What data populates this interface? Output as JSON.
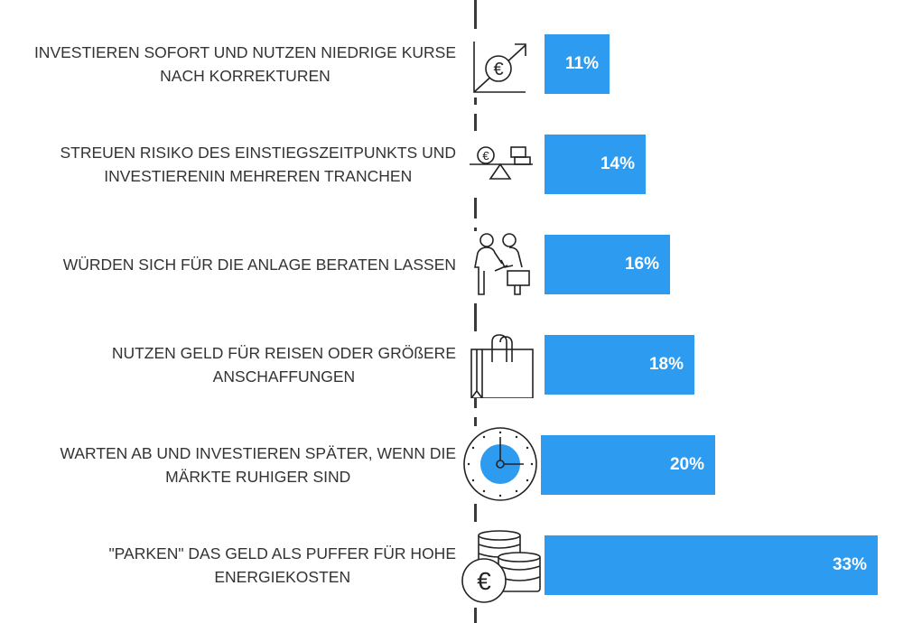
{
  "chart_data": {
    "type": "bar",
    "orientation": "horizontal",
    "title": "",
    "xlabel": "",
    "ylabel": "",
    "bar_color": "#2d9bf0",
    "categories": [
      [
        "INVESTIEREN SOFORT UND NUTZEN NIEDRIGE KURSE",
        "NACH KORREKTUREN"
      ],
      [
        "STREUEN RISIKO DES EINSTIEGSZEITPUNKTS UND",
        "INVESTIERENIN MEHREREN TRANCHEN"
      ],
      [
        "WÜRDEN SICH FÜR DIE ANLAGE BERATEN LASSEN"
      ],
      [
        "NUTZEN GELD FÜR REISEN ODER GRÖßERE",
        "ANSCHAFFUNGEN"
      ],
      [
        "WARTEN AB UND INVESTIEREN SPÄTER, WENN DIE",
        "MÄRKTE RUHIGER SIND"
      ],
      [
        "\"PARKEN\" DAS GELD ALS PUFFER FÜR HOHE",
        "ENERGIEKOSTEN"
      ]
    ],
    "values": [
      11,
      14,
      16,
      18,
      20,
      33
    ],
    "value_labels": [
      "11%",
      "14%",
      "16%",
      "18%",
      "20%",
      "33%"
    ],
    "icons": [
      "euro-growth-icon",
      "balance-scale-icon",
      "handshake-icon",
      "shopping-bag-icon",
      "clock-icon",
      "coins-icon"
    ]
  }
}
